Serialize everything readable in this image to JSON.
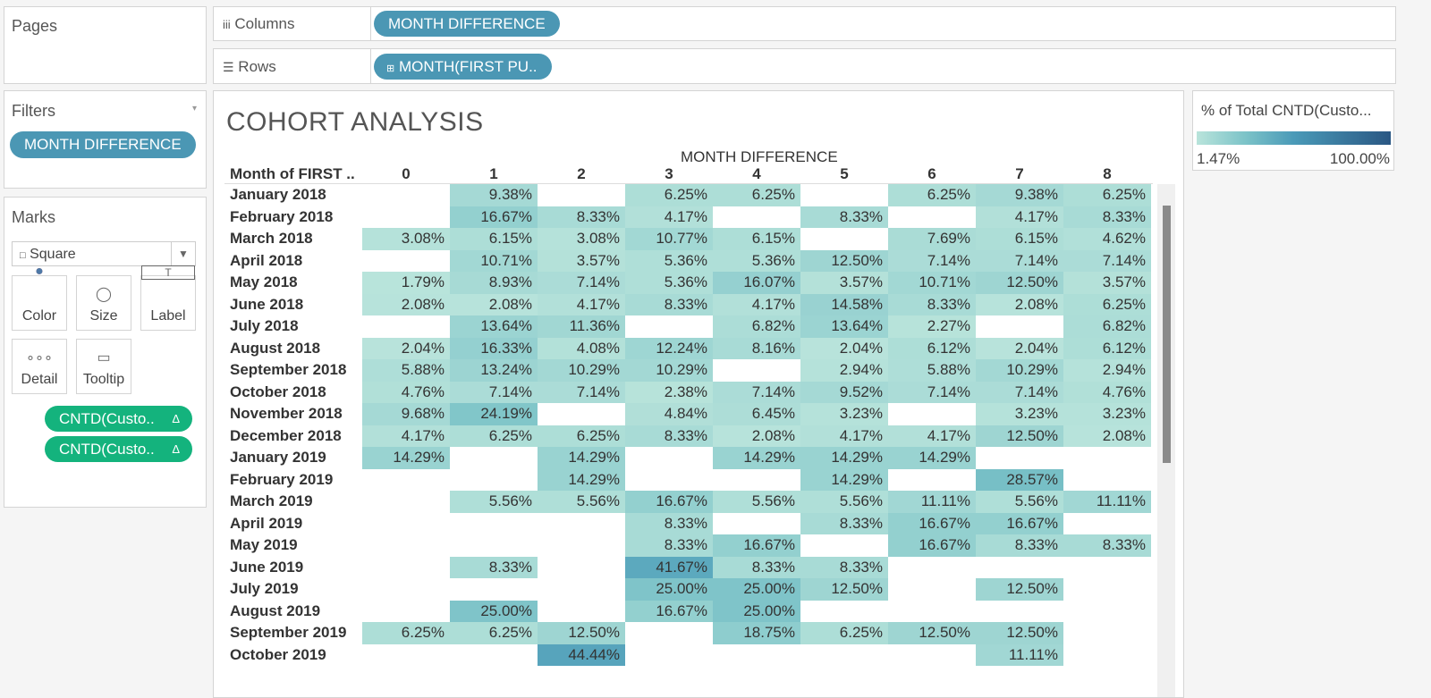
{
  "shelves": {
    "pages": "Pages",
    "columns": {
      "label": "Columns",
      "pill": "MONTH DIFFERENCE"
    },
    "rows": {
      "label": "Rows",
      "pill": "MONTH(FIRST PU.."
    }
  },
  "filters": {
    "title": "Filters",
    "pill": "MONTH DIFFERENCE"
  },
  "marks": {
    "title": "Marks",
    "mark_type": "Square",
    "buttons": [
      "Color",
      "Size",
      "Label",
      "Detail",
      "Tooltip"
    ],
    "pills": [
      "CNTD(Custo..",
      "CNTD(Custo.."
    ]
  },
  "view": {
    "title": "COHORT ANALYSIS",
    "column_header": "MONTH DIFFERENCE",
    "row_header": "Month of FIRST ..",
    "columns": [
      0,
      1,
      2,
      3,
      4,
      5,
      6,
      7,
      8
    ],
    "rows": [
      {
        "label": "January 2018",
        "cells": [
          null,
          "9.38%",
          null,
          "6.25%",
          "6.25%",
          null,
          "6.25%",
          "9.38%",
          "6.25%"
        ]
      },
      {
        "label": "February 2018",
        "cells": [
          null,
          "16.67%",
          "8.33%",
          "4.17%",
          null,
          "8.33%",
          null,
          "4.17%",
          "8.33%"
        ]
      },
      {
        "label": "March 2018",
        "cells": [
          "3.08%",
          "6.15%",
          "3.08%",
          "10.77%",
          "6.15%",
          null,
          "7.69%",
          "6.15%",
          "4.62%"
        ]
      },
      {
        "label": "April 2018",
        "cells": [
          null,
          "10.71%",
          "3.57%",
          "5.36%",
          "5.36%",
          "12.50%",
          "7.14%",
          "7.14%",
          "7.14%"
        ]
      },
      {
        "label": "May 2018",
        "cells": [
          "1.79%",
          "8.93%",
          "7.14%",
          "5.36%",
          "16.07%",
          "3.57%",
          "10.71%",
          "12.50%",
          "3.57%"
        ]
      },
      {
        "label": "June 2018",
        "cells": [
          "2.08%",
          "2.08%",
          "4.17%",
          "8.33%",
          "4.17%",
          "14.58%",
          "8.33%",
          "2.08%",
          "6.25%"
        ]
      },
      {
        "label": "July 2018",
        "cells": [
          null,
          "13.64%",
          "11.36%",
          null,
          "6.82%",
          "13.64%",
          "2.27%",
          null,
          "6.82%"
        ]
      },
      {
        "label": "August 2018",
        "cells": [
          "2.04%",
          "16.33%",
          "4.08%",
          "12.24%",
          "8.16%",
          "2.04%",
          "6.12%",
          "2.04%",
          "6.12%"
        ]
      },
      {
        "label": "September 2018",
        "cells": [
          "5.88%",
          "13.24%",
          "10.29%",
          "10.29%",
          null,
          "2.94%",
          "5.88%",
          "10.29%",
          "2.94%"
        ]
      },
      {
        "label": "October 2018",
        "cells": [
          "4.76%",
          "7.14%",
          "7.14%",
          "2.38%",
          "7.14%",
          "9.52%",
          "7.14%",
          "7.14%",
          "4.76%"
        ]
      },
      {
        "label": "November 2018",
        "cells": [
          "9.68%",
          "24.19%",
          null,
          "4.84%",
          "6.45%",
          "3.23%",
          null,
          "3.23%",
          "3.23%"
        ]
      },
      {
        "label": "December 2018",
        "cells": [
          "4.17%",
          "6.25%",
          "6.25%",
          "8.33%",
          "2.08%",
          "4.17%",
          "4.17%",
          "12.50%",
          "2.08%"
        ]
      },
      {
        "label": "January 2019",
        "cells": [
          "14.29%",
          null,
          "14.29%",
          null,
          "14.29%",
          "14.29%",
          "14.29%",
          null,
          null
        ]
      },
      {
        "label": "February 2019",
        "cells": [
          null,
          null,
          "14.29%",
          null,
          null,
          "14.29%",
          null,
          "28.57%",
          null
        ]
      },
      {
        "label": "March 2019",
        "cells": [
          null,
          "5.56%",
          "5.56%",
          "16.67%",
          "5.56%",
          "5.56%",
          "11.11%",
          "5.56%",
          "11.11%"
        ]
      },
      {
        "label": "April 2019",
        "cells": [
          null,
          null,
          null,
          "8.33%",
          null,
          "8.33%",
          "16.67%",
          "16.67%",
          null
        ]
      },
      {
        "label": "May 2019",
        "cells": [
          null,
          null,
          null,
          "8.33%",
          "16.67%",
          null,
          "16.67%",
          "8.33%",
          "8.33%"
        ]
      },
      {
        "label": "June 2019",
        "cells": [
          null,
          "8.33%",
          null,
          "41.67%",
          "8.33%",
          "8.33%",
          null,
          null,
          null
        ]
      },
      {
        "label": "July 2019",
        "cells": [
          null,
          null,
          null,
          "25.00%",
          "25.00%",
          "12.50%",
          null,
          "12.50%",
          null
        ]
      },
      {
        "label": "August 2019",
        "cells": [
          null,
          "25.00%",
          null,
          "16.67%",
          "25.00%",
          null,
          null,
          null,
          null
        ]
      },
      {
        "label": "September 2019",
        "cells": [
          "6.25%",
          "6.25%",
          "12.50%",
          null,
          "18.75%",
          "6.25%",
          "12.50%",
          "12.50%",
          null
        ]
      },
      {
        "label": "October 2019",
        "cells": [
          null,
          null,
          "44.44%",
          null,
          null,
          null,
          null,
          "11.11%",
          null
        ]
      }
    ]
  },
  "legend": {
    "title": "% of Total CNTD(Custo...",
    "min": "1.47%",
    "max": "100.00%"
  }
}
